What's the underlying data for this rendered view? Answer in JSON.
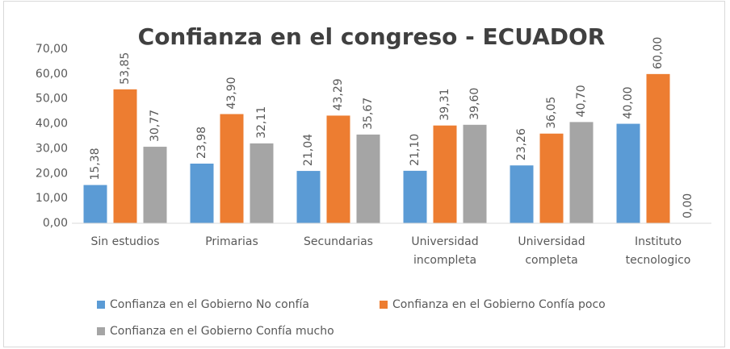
{
  "chart_data": {
    "type": "bar",
    "title": "Confianza en el congreso - ECUADOR",
    "categories": [
      "Sin estudios",
      "Primarias",
      "Secundarias",
      "Universidad incompleta",
      "Universidad completa",
      "Instituto tecnologico"
    ],
    "series": [
      {
        "name": "Confianza en el Gobierno No confía",
        "color": "#5b9bd5",
        "values": [
          15.38,
          23.98,
          21.04,
          21.1,
          23.26,
          40.0
        ],
        "value_labels": [
          "15,38",
          "23,98",
          "21,04",
          "21,10",
          "23,26",
          "40,00"
        ]
      },
      {
        "name": "Confianza en el Gobierno Confía poco",
        "color": "#ed7d31",
        "values": [
          53.85,
          43.9,
          43.29,
          39.31,
          36.05,
          60.0
        ],
        "value_labels": [
          "53,85",
          "43,90",
          "43,29",
          "39,31",
          "36,05",
          "60,00"
        ]
      },
      {
        "name": "Confianza en el Gobierno Confía mucho",
        "color": "#a5a5a5",
        "values": [
          30.77,
          32.11,
          35.67,
          39.6,
          40.7,
          0.0
        ],
        "value_labels": [
          "30,77",
          "32,11",
          "35,67",
          "39,60",
          "40,70",
          "0,00"
        ]
      }
    ],
    "ylim": [
      0,
      70
    ],
    "yticks": [
      {
        "value": 0,
        "label": "0,00"
      },
      {
        "value": 10,
        "label": "10,00"
      },
      {
        "value": 20,
        "label": "20,00"
      },
      {
        "value": 30,
        "label": "30,00"
      },
      {
        "value": 40,
        "label": "40,00"
      },
      {
        "value": 50,
        "label": "50,00"
      },
      {
        "value": 60,
        "label": "60,00"
      },
      {
        "value": 70,
        "label": "70,00"
      }
    ],
    "grid": false,
    "legend": "bottom"
  }
}
